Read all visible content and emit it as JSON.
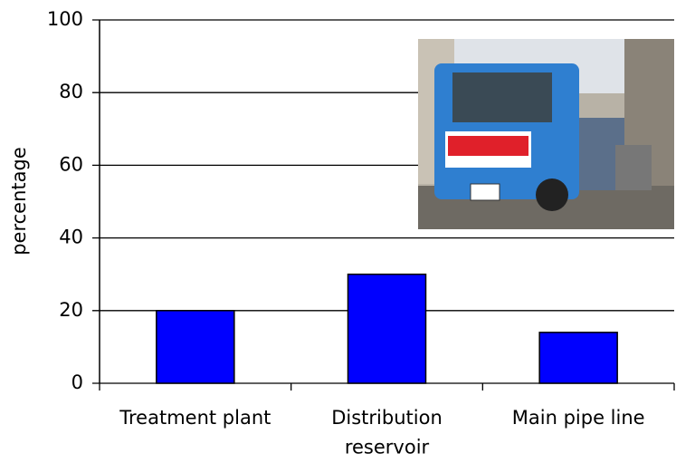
{
  "chart_data": {
    "type": "bar",
    "y_label": "percentage",
    "categories": [
      "Treatment plant",
      "Distribution\nreservoir",
      "Main pipe line"
    ],
    "values": [
      20,
      30,
      14
    ],
    "color": "#0000ff",
    "ylim": [
      0,
      100
    ],
    "yticks": [
      0,
      20,
      40,
      60,
      80,
      100
    ],
    "grid": true
  }
}
